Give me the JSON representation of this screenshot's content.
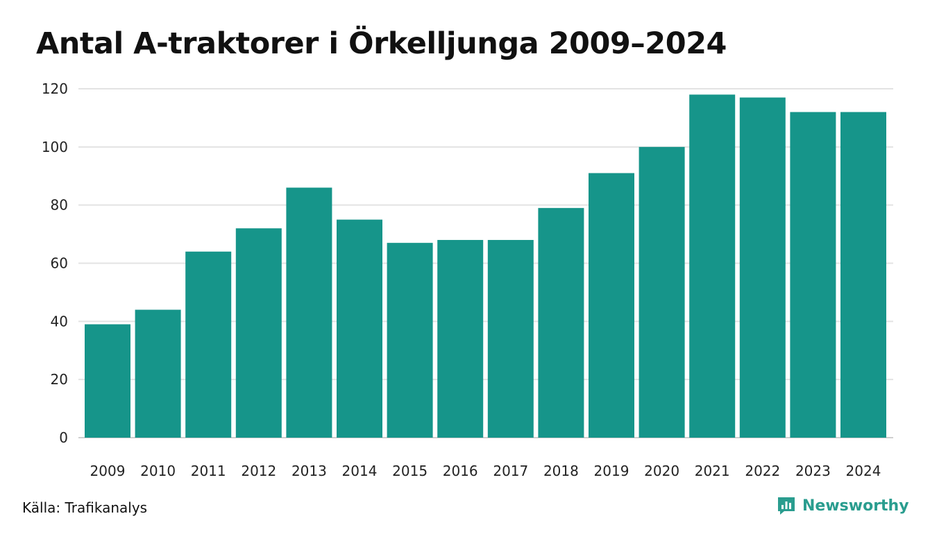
{
  "title": "Antal A-traktorer i Örkelljunga 2009–2024",
  "source": "Källa: Trafikanalys",
  "brand": {
    "name": "Newsworthy",
    "icon": "newsworthy-logo-icon",
    "color": "#2a9d8f"
  },
  "chart_data": {
    "type": "bar",
    "categories": [
      "2009",
      "2010",
      "2011",
      "2012",
      "2013",
      "2014",
      "2015",
      "2016",
      "2017",
      "2018",
      "2019",
      "2020",
      "2021",
      "2022",
      "2023",
      "2024"
    ],
    "values": [
      39,
      44,
      64,
      72,
      86,
      75,
      67,
      68,
      68,
      79,
      91,
      100,
      118,
      117,
      112,
      112
    ],
    "yticks": [
      0,
      20,
      40,
      60,
      80,
      100,
      120
    ],
    "ylim": [
      0,
      120
    ],
    "grid": true,
    "bar_color": "#16958a",
    "title": "Antal A-traktorer i Örkelljunga 2009–2024"
  }
}
